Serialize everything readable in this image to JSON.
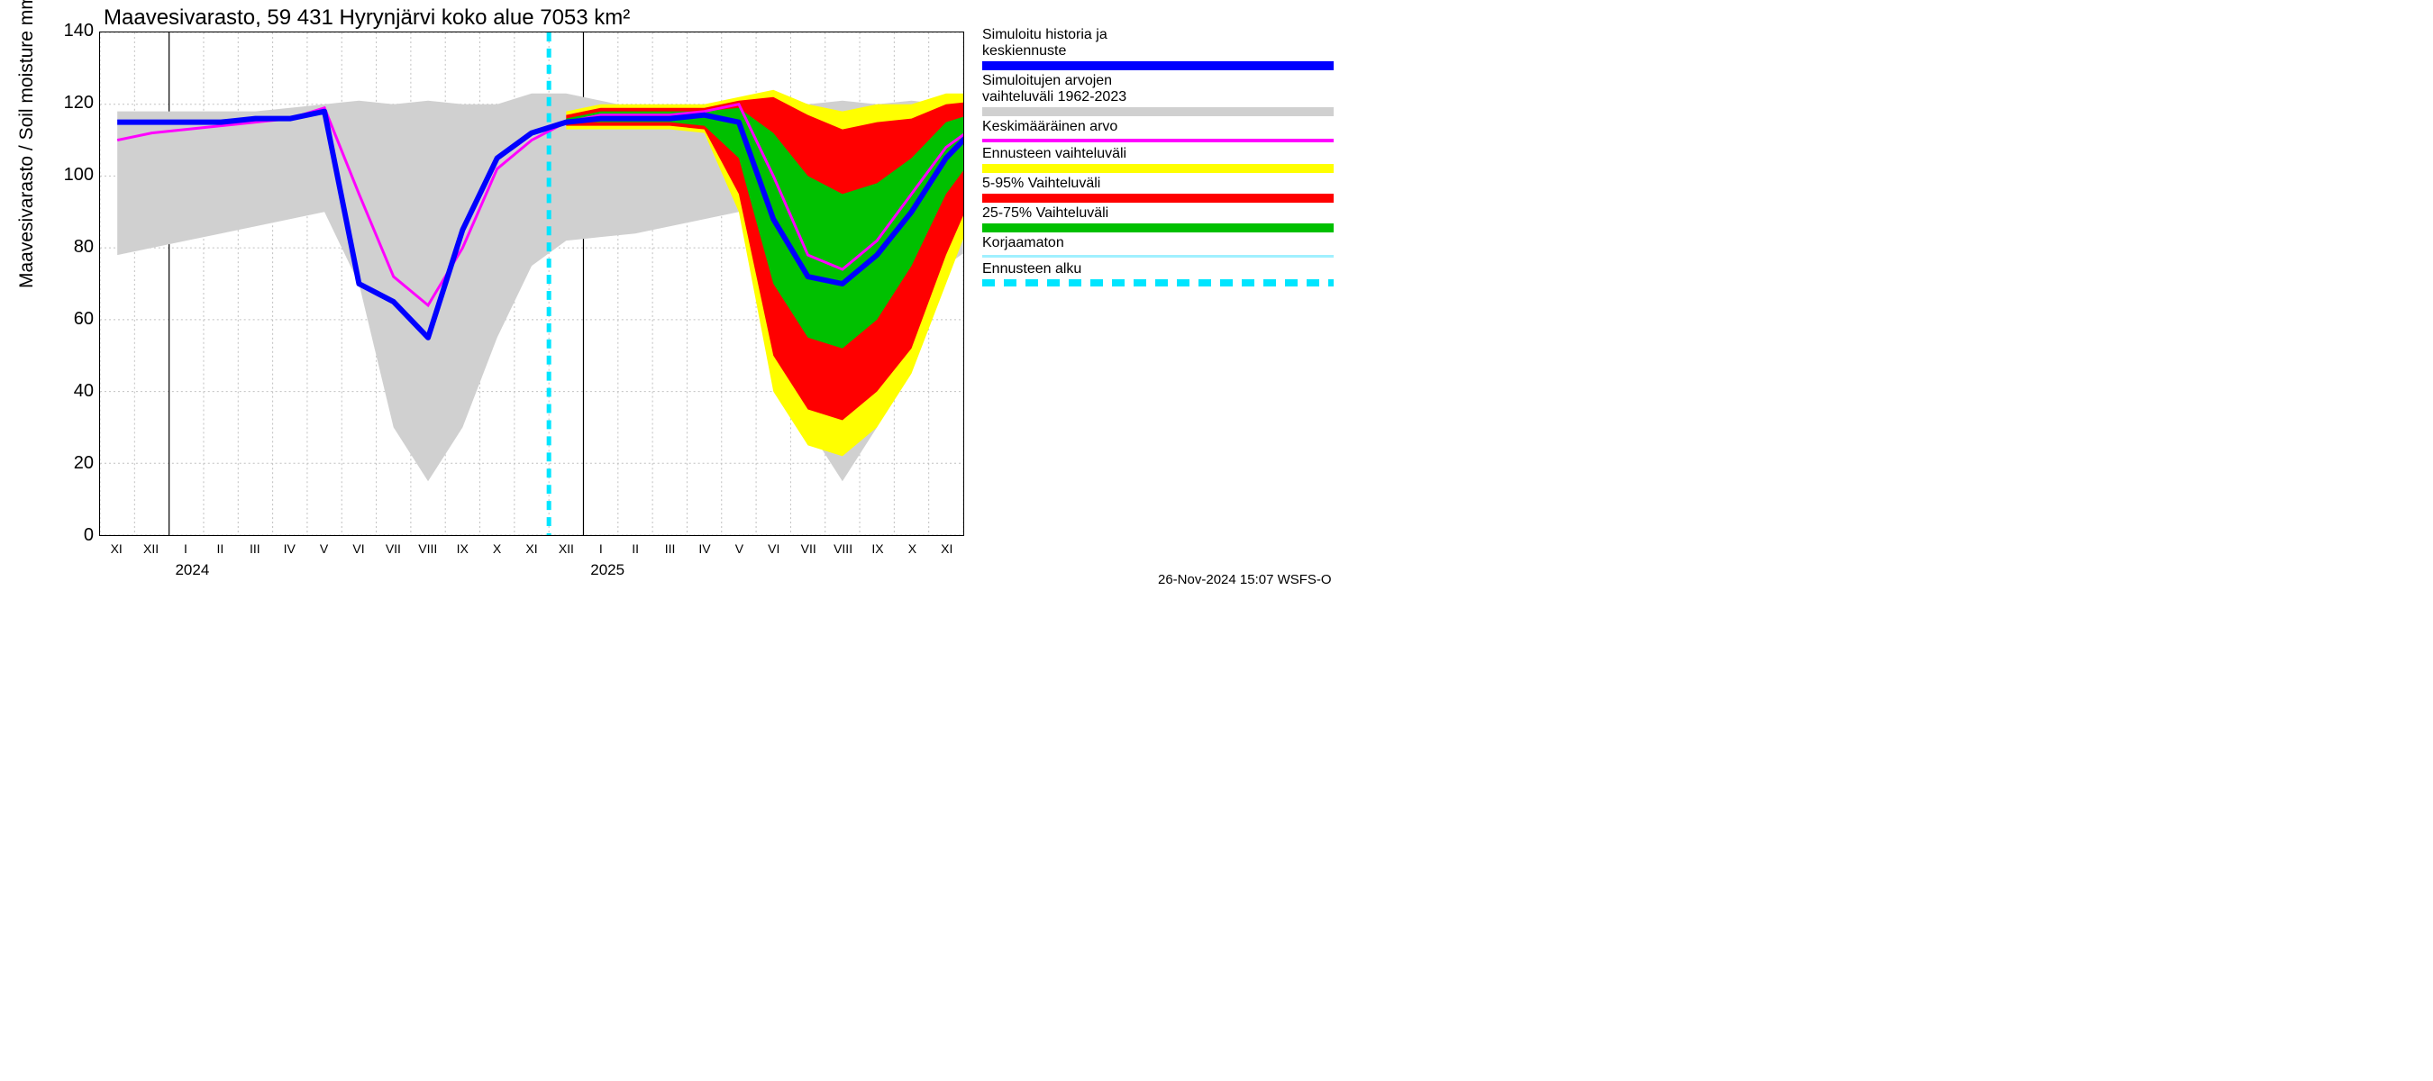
{
  "title": "Maavesivarasto, 59 431 Hyrynjärvi koko alue 7053 km²",
  "ylabel": "Maavesivarasto / Soil moisture   mm",
  "footer": "26-Nov-2024 15:07 WSFS-O",
  "colors": {
    "grid": "#c0c0c0",
    "grid_dash": "2,3",
    "axis": "#000000",
    "bg": "#ffffff",
    "gray_band": "#d0d0d0",
    "yellow": "#ffff00",
    "red": "#ff0000",
    "green": "#00c000",
    "blue": "#0000ff",
    "magenta": "#ff00ff",
    "cyan": "#00e5ff",
    "lightcyan": "#a0f0ff"
  },
  "y_axis": {
    "min": 0,
    "max": 140,
    "step": 20
  },
  "x_axis": {
    "min": 0,
    "max": 25,
    "month_labels": [
      "XI",
      "XII",
      "I",
      "II",
      "III",
      "IV",
      "V",
      "VI",
      "VII",
      "VIII",
      "IX",
      "X",
      "XI",
      "XII",
      "I",
      "II",
      "III",
      "IV",
      "V",
      "VI",
      "VII",
      "VIII",
      "IX",
      "X",
      "XI"
    ],
    "major_ticks_at": [
      2,
      14
    ],
    "year_labels": [
      {
        "x": 2.2,
        "text": "2024"
      },
      {
        "x": 14.2,
        "text": "2025"
      }
    ]
  },
  "forecast_start_x": 13.0,
  "series": {
    "gray_band": {
      "upper": [
        118,
        118,
        118,
        118,
        118,
        119,
        120,
        121,
        120,
        121,
        120,
        120,
        123,
        123,
        121,
        119,
        118,
        118,
        118,
        119,
        120,
        121,
        120,
        121,
        120,
        120
      ],
      "lower": [
        78,
        80,
        82,
        84,
        86,
        88,
        90,
        70,
        30,
        15,
        30,
        55,
        75,
        82,
        83,
        84,
        86,
        88,
        90,
        70,
        30,
        15,
        30,
        55,
        75,
        82
      ]
    },
    "yellow": {
      "upper": [
        null,
        null,
        null,
        null,
        null,
        null,
        null,
        null,
        null,
        null,
        null,
        null,
        null,
        118,
        120,
        120,
        120,
        120,
        122,
        124,
        120,
        118,
        120,
        120,
        123,
        123
      ],
      "lower": [
        null,
        null,
        null,
        null,
        null,
        null,
        null,
        null,
        null,
        null,
        null,
        null,
        null,
        113,
        113,
        113,
        113,
        112,
        90,
        40,
        25,
        22,
        30,
        45,
        70,
        95
      ]
    },
    "red": {
      "upper": [
        null,
        null,
        null,
        null,
        null,
        null,
        null,
        null,
        null,
        null,
        null,
        null,
        null,
        117,
        119,
        119,
        119,
        119,
        121,
        122,
        117,
        113,
        115,
        116,
        120,
        121
      ],
      "lower": [
        null,
        null,
        null,
        null,
        null,
        null,
        null,
        null,
        null,
        null,
        null,
        null,
        null,
        114,
        114,
        114,
        114,
        113,
        95,
        50,
        35,
        32,
        40,
        52,
        78,
        100
      ]
    },
    "green": {
      "upper": [
        null,
        null,
        null,
        null,
        null,
        null,
        null,
        null,
        null,
        null,
        null,
        null,
        null,
        116,
        118,
        118,
        118,
        118,
        119,
        112,
        100,
        95,
        98,
        105,
        115,
        118
      ],
      "lower": [
        null,
        null,
        null,
        null,
        null,
        null,
        null,
        null,
        null,
        null,
        null,
        null,
        null,
        115,
        115,
        115,
        115,
        114,
        105,
        70,
        55,
        52,
        60,
        75,
        95,
        108
      ]
    },
    "blue_line": [
      115,
      115,
      115,
      115,
      116,
      116,
      118,
      70,
      65,
      55,
      85,
      105,
      112,
      115,
      116,
      116,
      116,
      117,
      115,
      88,
      72,
      70,
      78,
      90,
      105,
      115
    ],
    "magenta_line": [
      110,
      112,
      113,
      114,
      115,
      116,
      119,
      95,
      72,
      64,
      80,
      102,
      110,
      115,
      117,
      117,
      117,
      118,
      120,
      100,
      78,
      74,
      82,
      95,
      108,
      115
    ]
  },
  "legend": [
    {
      "label_lines": [
        "Simuloitu historia ja",
        "keskiennuste"
      ],
      "swatch": "blue"
    },
    {
      "label_lines": [
        "Simuloitujen arvojen",
        "vaihteluväli 1962-2023"
      ],
      "swatch": "gray_band"
    },
    {
      "label_lines": [
        "Keskimääräinen arvo"
      ],
      "swatch": "magenta"
    },
    {
      "label_lines": [
        "Ennusteen vaihteluväli"
      ],
      "swatch": "yellow"
    },
    {
      "label_lines": [
        "5-95% Vaihteluväli"
      ],
      "swatch": "red"
    },
    {
      "label_lines": [
        "25-75% Vaihteluväli"
      ],
      "swatch": "green"
    },
    {
      "label_lines": [
        "Korjaamaton"
      ],
      "swatch": "lightcyan"
    },
    {
      "label_lines": [
        "Ennusteen alku"
      ],
      "swatch": "cyan_dash"
    }
  ]
}
